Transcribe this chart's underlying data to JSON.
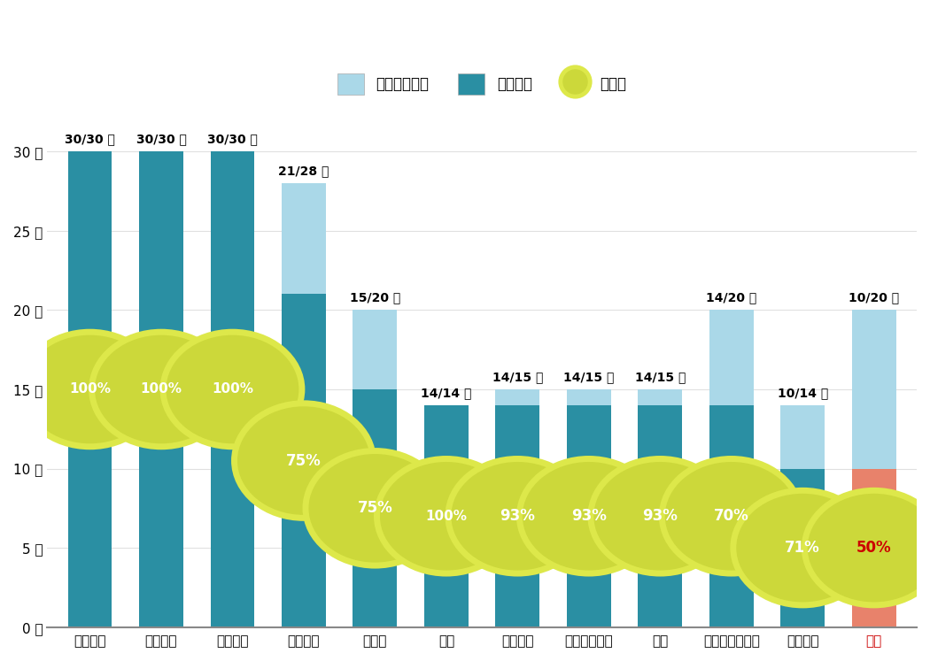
{
  "countries": [
    "ブラジル",
    "フランス",
    "スペイン",
    "イタリア",
    "インド",
    "香港",
    "メキシコ",
    "シンガポール",
    "韓国",
    "オーストラリア",
    "アメリカ",
    "日本"
  ],
  "taken": [
    30,
    30,
    30,
    21,
    15,
    14,
    14,
    14,
    14,
    14,
    10,
    10
  ],
  "total": [
    30,
    30,
    30,
    28,
    20,
    14,
    15,
    15,
    15,
    20,
    14,
    20
  ],
  "rates": [
    100,
    100,
    100,
    75,
    75,
    100,
    93,
    93,
    93,
    70,
    71,
    50
  ],
  "labels": [
    "30/30 日",
    "30/30 日",
    "30/30 日",
    "21/28 日",
    "15/20 日",
    "14/14 日",
    "14/15 日",
    "14/15 日",
    "14/15 日",
    "14/20 日",
    "10/14 日",
    "10/20 日"
  ],
  "bar_color_taken": "#2a8fa3",
  "bar_color_remaining": "#aad8e8",
  "bar_color_japan_taken": "#e8826b",
  "circle_fill": "#ccd83a",
  "circle_edge": "#dde84a",
  "bg_color": "#ffffff",
  "grid_color": "#e0e0e0",
  "legend_labels": [
    "有給支給日数",
    "取得日数",
    "取得率"
  ],
  "ylim_max": 32,
  "yticks": [
    0,
    5,
    10,
    15,
    20,
    25,
    30
  ],
  "ytick_labels": [
    "0 日",
    "5 日",
    "10 日",
    "15 日",
    "20 日",
    "25 日",
    "30 日"
  ],
  "japan_color": "#cc0000",
  "japan_index": 11,
  "circle_y_positions": [
    15,
    15,
    15,
    10.5,
    7.5,
    7,
    7,
    7,
    7,
    7,
    5,
    5
  ]
}
